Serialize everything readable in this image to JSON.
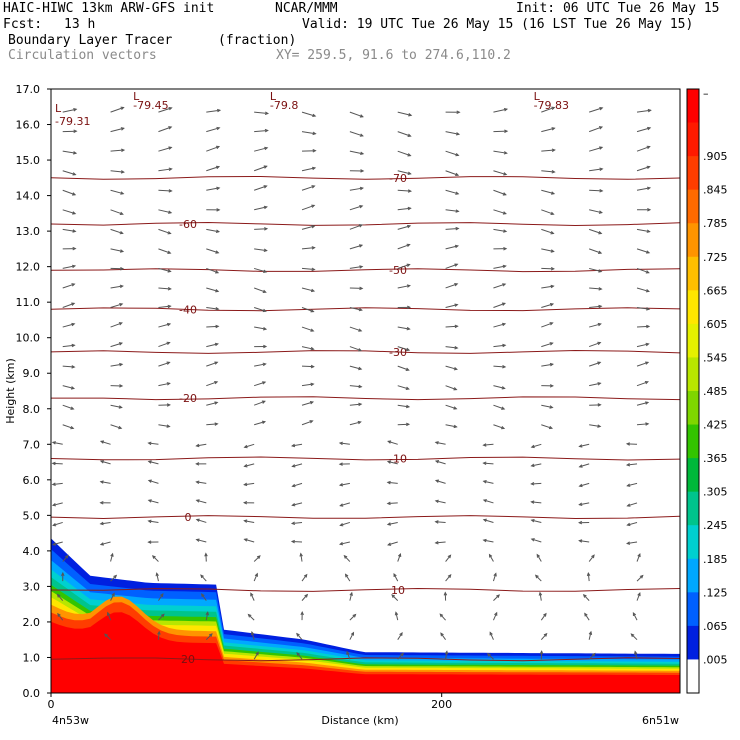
{
  "header": {
    "model": "HAIC-HIWC 13km ARW-GFS init",
    "org": "NCAR/MMM",
    "init": "Init: 06 UTC Tue 26 May 15",
    "fcst_label": "Fcst:",
    "fcst_value": "13 h",
    "valid": "Valid: 19 UTC Tue 26 May 15 (16 LST Tue 26 May 15)",
    "field": "Boundary Layer Tracer",
    "units": "(fraction)",
    "vectors": "Circulation vectors",
    "xy": "XY= 259.5, 91.6 to 274.6,110.2"
  },
  "chart_data": {
    "type": "cross-section",
    "ylabel": "Height (km)",
    "xlabel": "Distance (km)",
    "ylim": [
      0,
      17
    ],
    "yticks": [
      "0.0",
      "1.0",
      "2.0",
      "3.0",
      "4.0",
      "5.0",
      "6.0",
      "7.0",
      "8.0",
      "9.0",
      "10.0",
      "11.0",
      "12.0",
      "13.0",
      "14.0",
      "15.0",
      "16.0",
      "17.0"
    ],
    "xlim": [
      0,
      322
    ],
    "xticks": [
      {
        "value": 0,
        "label": "0"
      },
      {
        "value": 200,
        "label": "200"
      }
    ],
    "left_endpoint": "4n53w",
    "right_endpoint": "6n51w",
    "terrain_top_km": [
      [
        0,
        4.35
      ],
      [
        20,
        3.3
      ],
      [
        50,
        3.1
      ],
      [
        85,
        3.05
      ],
      [
        86,
        1.8
      ],
      [
        130,
        1.5
      ],
      [
        160,
        1.15
      ],
      [
        322,
        1.1
      ]
    ],
    "temperature_contours": [
      {
        "label": "-70",
        "height_km": 14.5
      },
      {
        "label": "-60",
        "height_km": 13.2
      },
      {
        "label": "-50",
        "height_km": 11.9
      },
      {
        "label": "-40",
        "height_km": 10.8
      },
      {
        "label": "-30",
        "height_km": 9.6
      },
      {
        "label": "-20",
        "height_km": 8.3
      },
      {
        "label": "-10",
        "height_km": 6.6
      },
      {
        "label": "0",
        "height_km": 4.95
      },
      {
        "label": "10",
        "height_km": 2.9
      },
      {
        "label": "20",
        "height_km": 0.95
      }
    ],
    "low_markers": [
      {
        "symbol": "L",
        "value": "-79.31"
      },
      {
        "symbol": "L",
        "value": "-79.45"
      },
      {
        "symbol": "L",
        "value": "-79.8"
      },
      {
        "symbol": "L",
        "value": "-79.83"
      }
    ],
    "colorbar": {
      "labels": [
        "–",
        ".905",
        ".845",
        ".785",
        ".725",
        ".665",
        ".605",
        ".545",
        ".485",
        ".425",
        ".365",
        ".305",
        ".245",
        ".185",
        ".125",
        ".065",
        ".005"
      ],
      "colors": [
        "#ff0000",
        "#ff1a00",
        "#ff3d00",
        "#ff6a00",
        "#ff9400",
        "#ffbf00",
        "#ffe600",
        "#e5f000",
        "#b8e600",
        "#7fd600",
        "#33c400",
        "#00b83a",
        "#00c48c",
        "#00d0d0",
        "#00a8ff",
        "#0060ff",
        "#0020e0",
        "#ffffff"
      ]
    }
  }
}
